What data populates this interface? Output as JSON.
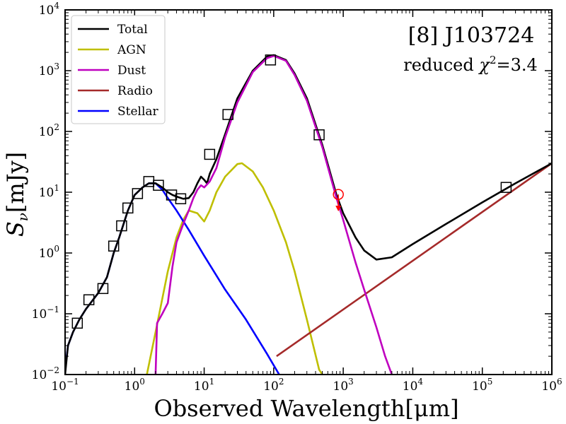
{
  "chart_data": {
    "type": "line",
    "title": "[8] J103724",
    "annotation": "reduced χ²=3.4",
    "annotation_prefix": "reduced",
    "annotation_value": "=3.4",
    "xlabel": "Observed Wavelength[μm]",
    "ylabel": "S_ν[mJy]",
    "xscale": "log",
    "yscale": "log",
    "xlim": [
      0.1,
      1000000
    ],
    "ylim": [
      0.01,
      10000
    ],
    "x_tick_labels": [
      "10^-1",
      "10^0",
      "10^1",
      "10^2",
      "10^3",
      "10^4",
      "10^5",
      "10^6"
    ],
    "y_tick_labels": [
      "10^-2",
      "10^-1",
      "10^0",
      "10^1",
      "10^2",
      "10^3",
      "10^4"
    ],
    "legend_position": "top-left",
    "series": [
      {
        "name": "Total",
        "color": "#000000",
        "points": [
          [
            0.1,
            0.01
          ],
          [
            0.11,
            0.03
          ],
          [
            0.13,
            0.05
          ],
          [
            0.16,
            0.08
          ],
          [
            0.2,
            0.12
          ],
          [
            0.3,
            0.22
          ],
          [
            0.4,
            0.4
          ],
          [
            0.5,
            1.0
          ],
          [
            0.6,
            1.8
          ],
          [
            0.8,
            5
          ],
          [
            1.0,
            9
          ],
          [
            1.3,
            12
          ],
          [
            1.6,
            14
          ],
          [
            2.0,
            14
          ],
          [
            2.5,
            12
          ],
          [
            3.0,
            10
          ],
          [
            3.5,
            9
          ],
          [
            4.0,
            8.5
          ],
          [
            5.0,
            7.8
          ],
          [
            6.0,
            8
          ],
          [
            7.0,
            10
          ],
          [
            8.0,
            14
          ],
          [
            9.0,
            18
          ],
          [
            10,
            16
          ],
          [
            11,
            14
          ],
          [
            12,
            20
          ],
          [
            15,
            35
          ],
          [
            20,
            90
          ],
          [
            30,
            350
          ],
          [
            50,
            1000
          ],
          [
            80,
            1700
          ],
          [
            100,
            1800
          ],
          [
            150,
            1500
          ],
          [
            200,
            900
          ],
          [
            300,
            350
          ],
          [
            500,
            60
          ],
          [
            800,
            9
          ],
          [
            1000,
            4.5
          ],
          [
            1500,
            1.8
          ],
          [
            2000,
            1.1
          ],
          [
            3000,
            0.78
          ],
          [
            5000,
            0.85
          ],
          [
            10000,
            1.4
          ],
          [
            30000,
            3.0
          ],
          [
            100000,
            6.8
          ],
          [
            300000,
            14
          ],
          [
            1000000,
            30
          ]
        ]
      },
      {
        "name": "AGN",
        "color": "#bfbf00",
        "points": [
          [
            1.5,
            0.01
          ],
          [
            2,
            0.05
          ],
          [
            3,
            0.5
          ],
          [
            4,
            1.8
          ],
          [
            5,
            3.5
          ],
          [
            6,
            5
          ],
          [
            8,
            4.5
          ],
          [
            10,
            3.3
          ],
          [
            12,
            5
          ],
          [
            15,
            10
          ],
          [
            20,
            18
          ],
          [
            30,
            29
          ],
          [
            35,
            30
          ],
          [
            50,
            22
          ],
          [
            70,
            12
          ],
          [
            100,
            5
          ],
          [
            150,
            1.5
          ],
          [
            200,
            0.5
          ],
          [
            300,
            0.08
          ],
          [
            450,
            0.012
          ],
          [
            500,
            0.01
          ]
        ]
      },
      {
        "name": "Dust",
        "color": "#bf00bf",
        "points": [
          [
            2,
            0.01
          ],
          [
            2.1,
            0.07
          ],
          [
            2.5,
            0.1
          ],
          [
            3,
            0.15
          ],
          [
            3.5,
            0.6
          ],
          [
            4,
            1.5
          ],
          [
            5,
            3
          ],
          [
            6,
            5
          ],
          [
            7,
            8
          ],
          [
            8,
            11
          ],
          [
            9,
            13
          ],
          [
            10,
            12
          ],
          [
            12,
            15
          ],
          [
            15,
            25
          ],
          [
            20,
            80
          ],
          [
            30,
            300
          ],
          [
            50,
            950
          ],
          [
            80,
            1600
          ],
          [
            100,
            1750
          ],
          [
            150,
            1450
          ],
          [
            200,
            850
          ],
          [
            300,
            320
          ],
          [
            500,
            55
          ],
          [
            800,
            8
          ],
          [
            1000,
            3.5
          ],
          [
            1500,
            0.7
          ],
          [
            2000,
            0.25
          ],
          [
            3000,
            0.06
          ],
          [
            4000,
            0.02
          ],
          [
            5000,
            0.01
          ]
        ]
      },
      {
        "name": "Radio",
        "color": "#a52a2a",
        "points": [
          [
            110,
            0.02
          ],
          [
            1000000,
            30
          ]
        ]
      },
      {
        "name": "Stellar",
        "color": "#0000ff",
        "points": [
          [
            0.1,
            0.012
          ],
          [
            0.11,
            0.03
          ],
          [
            0.13,
            0.05
          ],
          [
            0.16,
            0.08
          ],
          [
            0.2,
            0.12
          ],
          [
            0.3,
            0.22
          ],
          [
            0.4,
            0.4
          ],
          [
            0.5,
            1.0
          ],
          [
            0.6,
            1.8
          ],
          [
            0.8,
            5
          ],
          [
            1.0,
            9
          ],
          [
            1.3,
            12
          ],
          [
            1.6,
            14
          ],
          [
            2.0,
            14
          ],
          [
            2.5,
            11
          ],
          [
            3.0,
            8
          ],
          [
            4.0,
            5
          ],
          [
            6.0,
            2.4
          ],
          [
            10,
            0.9
          ],
          [
            20,
            0.25
          ],
          [
            40,
            0.08
          ],
          [
            80,
            0.022
          ],
          [
            120,
            0.01
          ]
        ]
      }
    ],
    "observations": {
      "marker": "square",
      "points": [
        [
          0.15,
          0.07
        ],
        [
          0.22,
          0.17
        ],
        [
          0.35,
          0.26
        ],
        [
          0.5,
          1.3
        ],
        [
          0.65,
          2.8
        ],
        [
          0.8,
          5.5
        ],
        [
          1.1,
          9.5
        ],
        [
          1.6,
          15
        ],
        [
          2.2,
          13
        ],
        [
          3.4,
          9
        ],
        [
          4.6,
          7.8
        ],
        [
          12,
          42
        ],
        [
          22,
          190
        ],
        [
          90,
          1500
        ],
        [
          450,
          88
        ],
        [
          220000,
          12
        ]
      ]
    },
    "upper_limits": {
      "marker": "circle",
      "color": "#ff0000",
      "points": [
        [
          850,
          9.2
        ]
      ]
    }
  }
}
